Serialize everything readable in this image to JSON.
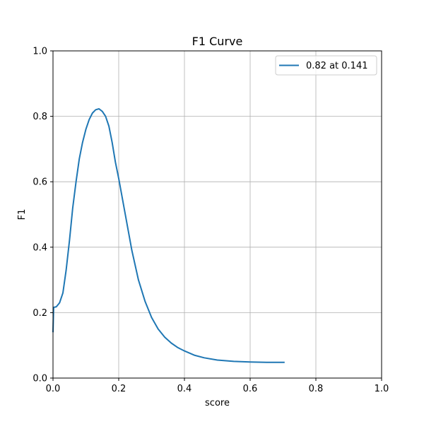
{
  "chart_data": {
    "type": "line",
    "title": "F1 Curve",
    "xlabel": "score",
    "ylabel": "F1",
    "xlim": [
      0.0,
      1.0
    ],
    "ylim": [
      0.0,
      1.0
    ],
    "xticks": [
      "0.0",
      "0.2",
      "0.4",
      "0.6",
      "0.8",
      "1.0"
    ],
    "yticks": [
      "0.0",
      "0.2",
      "0.4",
      "0.6",
      "0.8",
      "1.0"
    ],
    "grid": true,
    "legend_position": "top-right",
    "colors": {
      "series": "#1f77b4",
      "grid": "#b0b0b0",
      "axis": "#000000"
    },
    "series": [
      {
        "name": "0.82 at 0.141",
        "x": [
          0.0,
          0.002,
          0.01,
          0.02,
          0.03,
          0.04,
          0.05,
          0.06,
          0.07,
          0.08,
          0.09,
          0.1,
          0.11,
          0.12,
          0.13,
          0.14,
          0.15,
          0.16,
          0.17,
          0.18,
          0.19,
          0.2,
          0.22,
          0.24,
          0.26,
          0.28,
          0.3,
          0.32,
          0.34,
          0.36,
          0.38,
          0.4,
          0.43,
          0.46,
          0.5,
          0.55,
          0.6,
          0.65,
          0.705
        ],
        "y": [
          0.14,
          0.216,
          0.218,
          0.23,
          0.26,
          0.33,
          0.42,
          0.52,
          0.6,
          0.67,
          0.72,
          0.76,
          0.79,
          0.81,
          0.82,
          0.823,
          0.815,
          0.8,
          0.77,
          0.72,
          0.66,
          0.61,
          0.5,
          0.39,
          0.3,
          0.235,
          0.185,
          0.15,
          0.125,
          0.107,
          0.093,
          0.083,
          0.07,
          0.062,
          0.055,
          0.051,
          0.049,
          0.048,
          0.048
        ]
      }
    ]
  }
}
